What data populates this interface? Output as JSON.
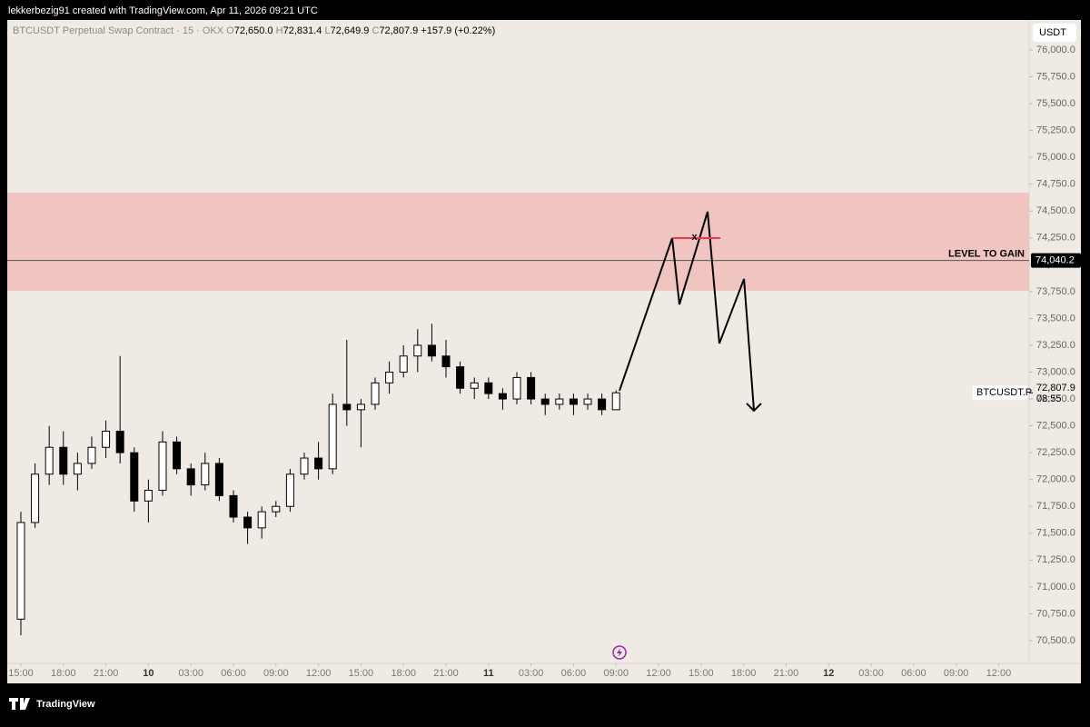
{
  "header": "lekkerbezig91 created with TradingView.com, Apr 11, 2026 09:21 UTC",
  "legend": {
    "symbol": "BTCUSDT Perpetual Swap Contract · 15 · OKX",
    "o_label": "O",
    "o": "72,650.0",
    "h_label": "H",
    "h": "72,831.4",
    "l_label": "L",
    "l": "72,649.9",
    "c_label": "C",
    "c": "72,807.9",
    "change": "+157.9 (+0.22%)"
  },
  "currency": "USDT",
  "footer": "TradingView",
  "chart_data": {
    "type": "candlestick",
    "x": [
      0,
      1,
      2,
      3,
      4,
      5,
      6,
      7,
      8,
      9,
      10,
      11,
      12,
      13,
      14,
      15,
      16,
      17,
      18,
      19,
      20,
      21,
      22,
      23,
      24,
      25,
      26,
      27,
      28,
      29,
      30,
      31,
      32,
      33,
      34,
      35,
      36,
      37,
      38,
      39,
      40,
      41,
      42
    ],
    "series": [
      {
        "name": "BTCUSDT.P",
        "up_color": "#ffffff",
        "down_color": "#000000",
        "open": [
          70700,
          71600,
          72050,
          72300,
          72050,
          72150,
          72300,
          72450,
          72250,
          71800,
          71900,
          72350,
          72100,
          71950,
          72150,
          71850,
          71650,
          71550,
          71700,
          71750,
          72050,
          72200,
          72100,
          72700,
          72650,
          72700,
          72900,
          73000,
          73150,
          73250,
          73150,
          73050,
          72850,
          72900,
          72800,
          72750,
          72950,
          72750,
          72700,
          72750,
          72700,
          72750,
          72650
        ],
        "high": [
          71700,
          72150,
          72500,
          72450,
          72250,
          72400,
          72550,
          73150,
          72300,
          72000,
          72450,
          72400,
          72150,
          72250,
          72200,
          71900,
          71700,
          71750,
          71800,
          72100,
          72250,
          72350,
          72800,
          73300,
          72750,
          72950,
          73100,
          73250,
          73400,
          73450,
          73300,
          73100,
          72950,
          72950,
          72850,
          73000,
          73000,
          72800,
          72800,
          72800,
          72800,
          72800,
          72831.4
        ],
        "low": [
          70550,
          71550,
          71950,
          71950,
          71900,
          72100,
          72200,
          72150,
          71700,
          71600,
          71850,
          72050,
          71850,
          71900,
          71800,
          71600,
          71400,
          71450,
          71650,
          71700,
          72000,
          72000,
          72050,
          72500,
          72300,
          72650,
          72800,
          72950,
          73000,
          73100,
          72950,
          72800,
          72750,
          72750,
          72650,
          72700,
          72700,
          72600,
          72650,
          72600,
          72650,
          72600,
          72649.9
        ],
        "close": [
          71600,
          72050,
          72300,
          72050,
          72150,
          72300,
          72450,
          72250,
          71800,
          71900,
          72350,
          72100,
          71950,
          72150,
          71850,
          71650,
          71550,
          71700,
          71750,
          72050,
          72200,
          72100,
          72700,
          72650,
          72700,
          72900,
          73000,
          73150,
          73250,
          73150,
          73050,
          72850,
          72900,
          72800,
          72750,
          72950,
          72750,
          72700,
          72750,
          72700,
          72750,
          72650,
          72807.9
        ]
      }
    ],
    "last_price_label": "72,807.9",
    "countdown": "08:55",
    "xlim": [
      -0.96,
      71.15
    ],
    "xticks": [
      {
        "value": 0,
        "label": "15:00"
      },
      {
        "value": 3,
        "label": "18:00"
      },
      {
        "value": 6,
        "label": "21:00"
      },
      {
        "value": 9,
        "label": "10"
      },
      {
        "value": 12,
        "label": "03:00"
      },
      {
        "value": 15,
        "label": "06:00"
      },
      {
        "value": 18,
        "label": "09:00"
      },
      {
        "value": 21,
        "label": "12:00"
      },
      {
        "value": 24,
        "label": "15:00"
      },
      {
        "value": 27,
        "label": "18:00"
      },
      {
        "value": 30,
        "label": "21:00"
      },
      {
        "value": 33,
        "label": "11"
      },
      {
        "value": 36,
        "label": "03:00"
      },
      {
        "value": 39,
        "label": "06:00"
      },
      {
        "value": 42,
        "label": "09:00"
      },
      {
        "value": 45,
        "label": "12:00"
      },
      {
        "value": 48,
        "label": "15:00"
      },
      {
        "value": 51,
        "label": "18:00"
      },
      {
        "value": 54,
        "label": "21:00"
      },
      {
        "value": 57,
        "label": "12"
      },
      {
        "value": 60,
        "label": "03:00"
      },
      {
        "value": 63,
        "label": "06:00"
      },
      {
        "value": 66,
        "label": "09:00"
      },
      {
        "value": 69,
        "label": "12:00"
      }
    ],
    "ylim": [
      70288,
      76279
    ],
    "yticks": [
      {
        "value": 70500,
        "label": "70,500.0"
      },
      {
        "value": 70750,
        "label": "70,750.0"
      },
      {
        "value": 71000,
        "label": "71,000.0"
      },
      {
        "value": 71250,
        "label": "71,250.0"
      },
      {
        "value": 71500,
        "label": "71,500.0"
      },
      {
        "value": 71750,
        "label": "71,750.0"
      },
      {
        "value": 72000,
        "label": "72,000.0"
      },
      {
        "value": 72250,
        "label": "72,250.0"
      },
      {
        "value": 72500,
        "label": "72,500.0"
      },
      {
        "value": 72750,
        "label": "72,750.0"
      },
      {
        "value": 73000,
        "label": "73,000.0"
      },
      {
        "value": 73250,
        "label": "73,250.0"
      },
      {
        "value": 73500,
        "label": "73,500.0"
      },
      {
        "value": 73750,
        "label": "73,750.0"
      },
      {
        "value": 74000,
        "label": "74,000.0"
      },
      {
        "value": 74250,
        "label": "74,250.0"
      },
      {
        "value": 74500,
        "label": "74,500.0"
      },
      {
        "value": 74750,
        "label": "74,750.0"
      },
      {
        "value": 75000,
        "label": "75,000.0"
      },
      {
        "value": 75250,
        "label": "75,250.0"
      },
      {
        "value": 75500,
        "label": "75,500.0"
      },
      {
        "value": 75750,
        "label": "75,750.0"
      },
      {
        "value": 76000,
        "label": "76,000.0"
      }
    ],
    "zone": {
      "low": 73758,
      "high": 74672,
      "color": "#f0c5c1"
    },
    "level": {
      "value": 74040.2,
      "label": "LEVEL  TO GAIN",
      "value_label": "74,040.2"
    },
    "projection": {
      "x": [
        42.24,
        45.96,
        46.47,
        48.46,
        49.29,
        51.03,
        51.73
      ],
      "y": [
        72827,
        74248,
        73631,
        74494,
        73267,
        73868,
        72641
      ]
    },
    "marker": {
      "x1": 45.96,
      "x2": 49.36,
      "y": 74248,
      "label": "x",
      "color": "#f23645"
    }
  }
}
